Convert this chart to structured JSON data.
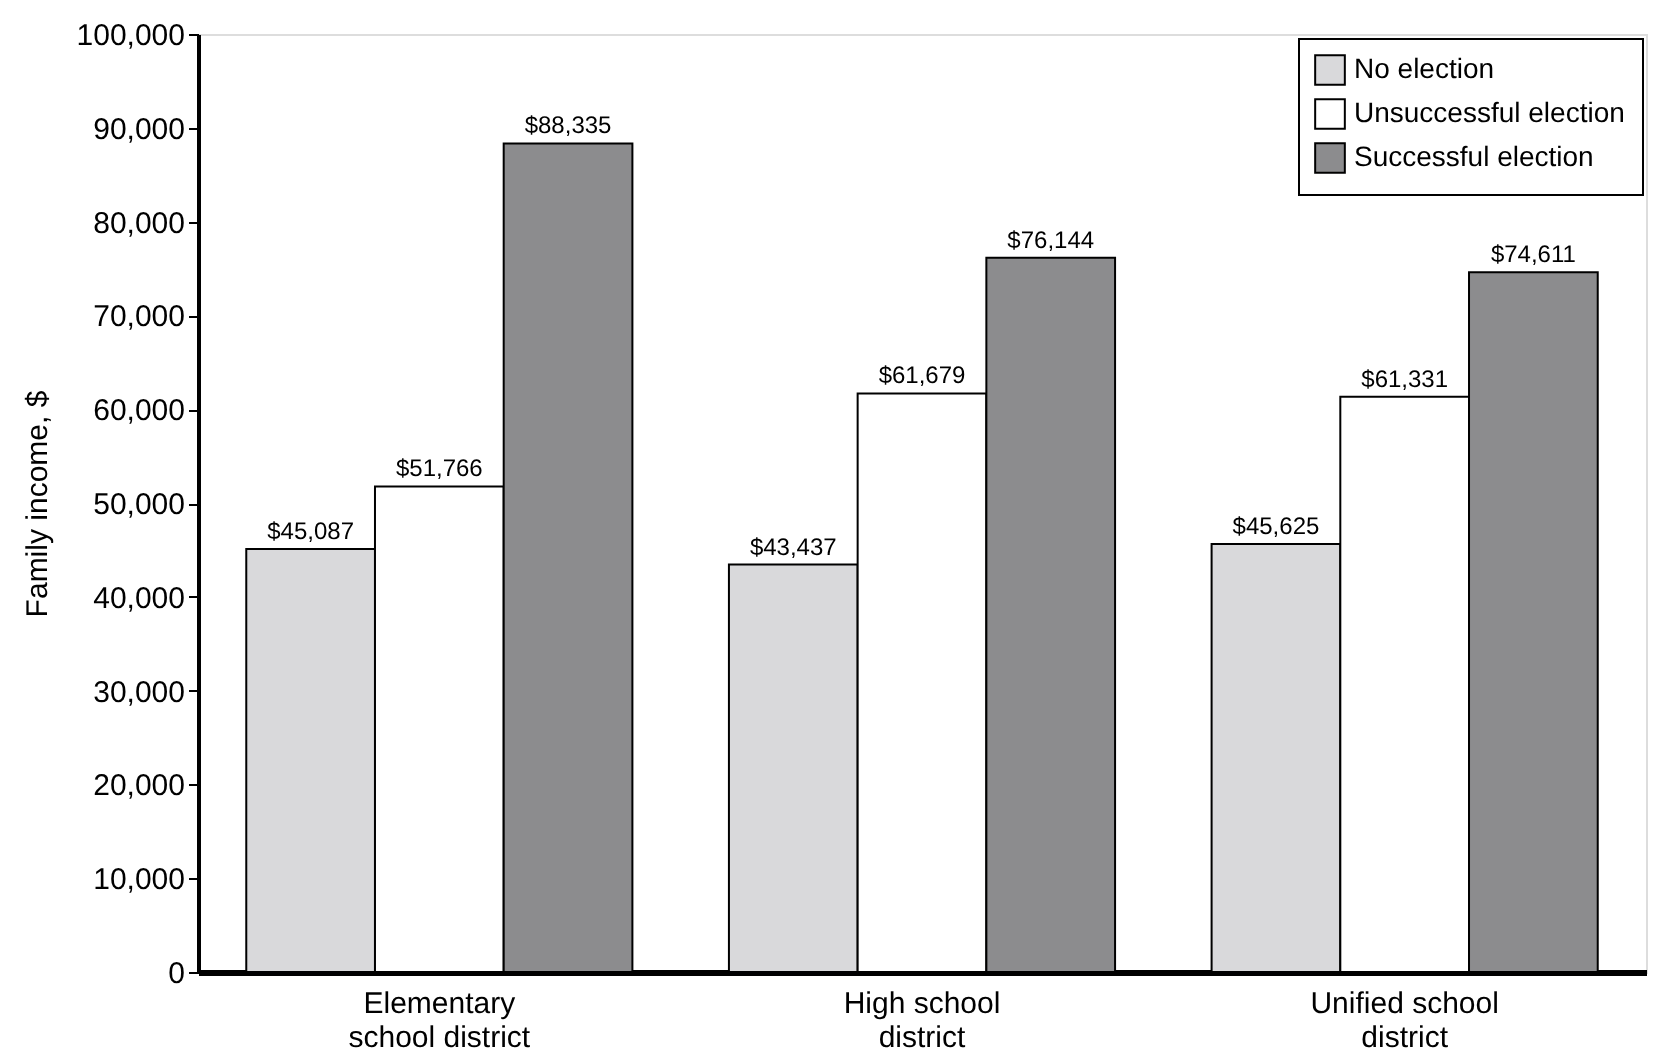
{
  "chart_data": {
    "type": "bar",
    "ylabel": "Family income, $",
    "categories": [
      "Elementary\nschool district",
      "High school\ndistrict",
      "Unified school\ndistrict"
    ],
    "series": [
      {
        "name": "No election",
        "color": "#d9d9db",
        "values": [
          45087,
          43437,
          45625
        ],
        "value_labels": [
          "$45,087",
          "$43,437",
          "$45,625"
        ]
      },
      {
        "name": "Unsuccessful election",
        "color": "#ffffff",
        "values": [
          51766,
          61679,
          61331
        ],
        "value_labels": [
          "$51,766",
          "$61,679",
          "$61,331"
        ]
      },
      {
        "name": "Successful election",
        "color": "#8c8c8e",
        "values": [
          88335,
          76144,
          74611
        ],
        "value_labels": [
          "$88,335",
          "$76,144",
          "$74,611"
        ]
      }
    ],
    "ylim": [
      0,
      100000
    ],
    "yticks": [
      0,
      {
        "value": 10000,
        "label": "10,000"
      },
      {
        "value": 20000,
        "label": "20,000"
      },
      {
        "value": 30000,
        "label": "30,000"
      },
      {
        "value": 40000,
        "label": "40,000"
      },
      {
        "value": 50000,
        "label": "50,000"
      },
      {
        "value": 60000,
        "label": "60,000"
      },
      {
        "value": 70000,
        "label": "70,000"
      },
      {
        "value": 80000,
        "label": "80,000"
      },
      {
        "value": 90000,
        "label": "90,000"
      },
      {
        "value": 100000,
        "label": "100,000"
      }
    ],
    "grid": false,
    "legend": "top right"
  }
}
